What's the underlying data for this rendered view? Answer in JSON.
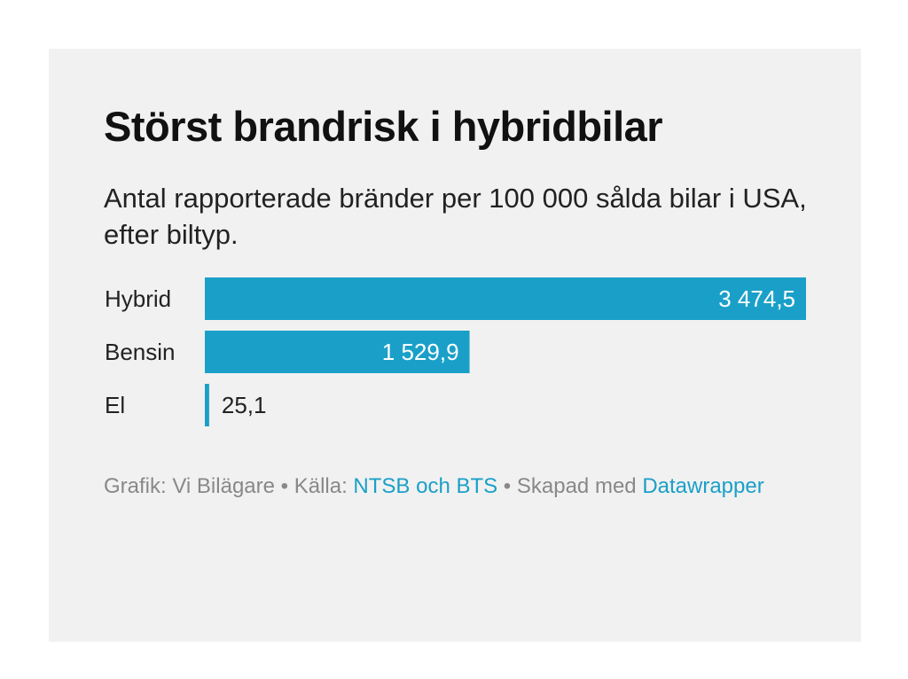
{
  "chart_data": {
    "type": "bar",
    "orientation": "horizontal",
    "title": "Störst brandrisk i hybridbilar",
    "subtitle": "Antal rapporterade bränder per 100 000 sålda bilar i USA, efter biltyp.",
    "categories": [
      "Hybrid",
      "Bensin",
      "El"
    ],
    "values": [
      3474.5,
      1529.9,
      25.1
    ],
    "value_labels": [
      "3 474,5",
      "1 529,9",
      "25,1"
    ],
    "xlim": [
      0,
      3474.5
    ],
    "grid": false,
    "legend": "none",
    "bar_color": "#1aa0c8"
  },
  "footer": {
    "credit": "Grafik: Vi Bilägare • Källa: ",
    "source_link": "NTSB och BTS",
    "made_with": " • Skapad med ",
    "tool_link": "Datawrapper"
  },
  "colors": {
    "background": "#f1f1f1",
    "bar": "#1aa0c8",
    "text": "#111111",
    "muted": "#888888",
    "link": "#1aa0c8"
  }
}
